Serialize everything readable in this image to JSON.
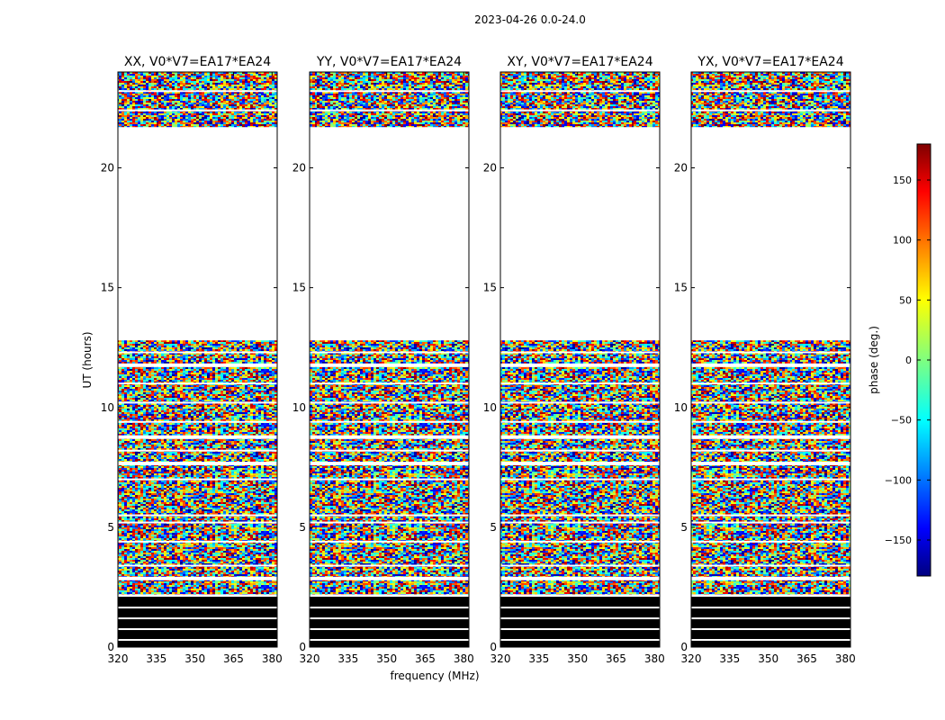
{
  "chart_data": {
    "type": "heatmap",
    "suptitle": "2023-04-26 0.0-24.0",
    "xlabel": "frequency (MHz)",
    "ylabel": "UT (hours)",
    "xlim": [
      320,
      382
    ],
    "ylim": [
      0,
      24
    ],
    "xticks": [
      320,
      335,
      350,
      365,
      380
    ],
    "yticks": [
      0,
      5,
      10,
      15,
      20
    ],
    "panels": [
      {
        "title": "XX, V0*V7=EA17*EA24",
        "pol": "XX"
      },
      {
        "title": "YY, V0*V7=EA17*EA24",
        "pol": "YY"
      },
      {
        "title": "XY, V0*V7=EA17*EA24",
        "pol": "XY"
      },
      {
        "title": "YX, V0*V7=EA17*EA24",
        "pol": "YX"
      }
    ],
    "data_ut_ranges": [
      [
        2.2,
        12.8
      ],
      [
        21.7,
        24.0
      ]
    ],
    "flagged_ut_range": [
      0.0,
      2.1
    ],
    "gap_ut_range": [
      12.8,
      21.7
    ],
    "colorbar": {
      "label": "phase (deg.)",
      "range": [
        -180,
        180
      ],
      "ticks": [
        150,
        100,
        50,
        0,
        -50,
        -100,
        -150
      ],
      "colormap": "jet"
    }
  }
}
